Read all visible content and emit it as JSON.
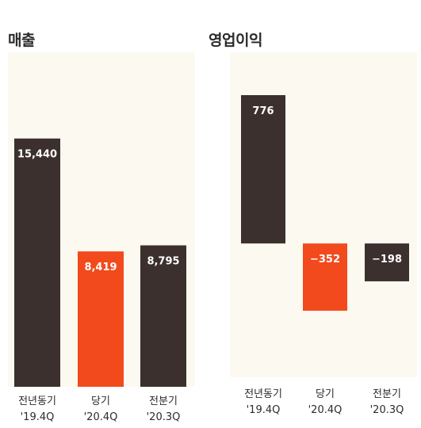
{
  "chart_data": [
    {
      "type": "bar",
      "title": "매출",
      "categories": [
        "전년동기 '19.4Q",
        "당기 '20.4Q",
        "전분기 '20.3Q"
      ],
      "category_lines": [
        [
          "전년동기",
          "'19.4Q"
        ],
        [
          "당기",
          "'20.4Q"
        ],
        [
          "전분기",
          "'20.3Q"
        ]
      ],
      "values": [
        15440,
        8419,
        8795
      ],
      "value_labels": [
        "15,440",
        "8,419",
        "8,795"
      ],
      "highlight_index": 1,
      "ylim": [
        0,
        20800
      ]
    },
    {
      "type": "bar",
      "title": "영업이익",
      "categories": [
        "전년동기 '19.4Q",
        "당기 '20.4Q",
        "전분기 '20.3Q"
      ],
      "category_lines": [
        [
          "전년동기",
          "'19.4Q"
        ],
        [
          "당기",
          "'20.4Q"
        ],
        [
          "전분기",
          "'20.3Q"
        ]
      ],
      "values": [
        776,
        -352,
        -198
      ],
      "value_labels": [
        "776",
        "−352",
        "−198"
      ],
      "highlight_index": 1,
      "ylim": [
        -700,
        1000
      ]
    }
  ],
  "colors": {
    "panel_bg": "#fcf9f1",
    "bar_default": "#3b302d",
    "bar_highlight": "#f24a1c",
    "bar_label": "#ffffff",
    "category_text": "#2b2b2b"
  }
}
